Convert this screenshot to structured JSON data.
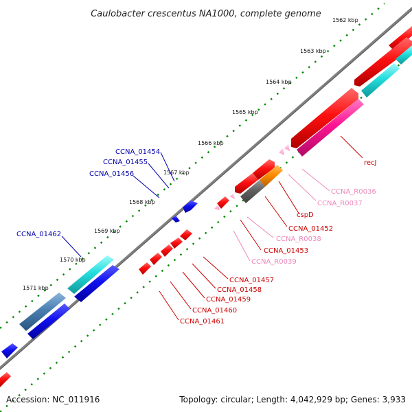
{
  "title": "Caulobacter crescentus NA1000, complete genome",
  "footer": {
    "accession": "Accession: NC_011916",
    "info": "Topology: circular; Length: 4,042,929 bp; Genes: 3,933"
  },
  "colors": {
    "backbone": "#808080",
    "tick_dot": "#0a8a0a",
    "red": "#ff1010",
    "blue": "#1010ee",
    "cyan": "#22dddd",
    "steel": "#4a7fb0",
    "pink": "#ff1493",
    "light_pink": "#ffaad4",
    "orange": "#ff8c00",
    "gray": "#606060"
  },
  "scale_labels": [
    "1562 kbp",
    "1563 kbp",
    "1564 kbp",
    "1565 kbp",
    "1566 kbp",
    "1567 kbp",
    "1568 kbp",
    "1569 kbp",
    "1570 kbp",
    "1571 kbp"
  ],
  "gene_labels": [
    {
      "text": "recJ",
      "color": "#cc0000"
    },
    {
      "text": "CCNA_R0036",
      "color": "#ee88bb"
    },
    {
      "text": "CCNA_R0037",
      "color": "#ee88bb"
    },
    {
      "text": "cspD",
      "color": "#cc0000"
    },
    {
      "text": "CCNA_01452",
      "color": "#cc0000"
    },
    {
      "text": "CCNA_R0038",
      "color": "#ee88bb"
    },
    {
      "text": "CCNA_01453",
      "color": "#cc0000"
    },
    {
      "text": "CCNA_R0039",
      "color": "#ee88bb"
    },
    {
      "text": "CCNA_01457",
      "color": "#cc0000"
    },
    {
      "text": "CCNA_01458",
      "color": "#cc0000"
    },
    {
      "text": "CCNA_01459",
      "color": "#cc0000"
    },
    {
      "text": "CCNA_01460",
      "color": "#cc0000"
    },
    {
      "text": "CCNA_01461",
      "color": "#cc0000"
    },
    {
      "text": "CCNA_01454",
      "color": "#0000aa"
    },
    {
      "text": "CCNA_01455",
      "color": "#0000aa"
    },
    {
      "text": "CCNA_01456",
      "color": "#0000aa"
    },
    {
      "text": "CCNA_01462",
      "color": "#0000aa"
    }
  ]
}
